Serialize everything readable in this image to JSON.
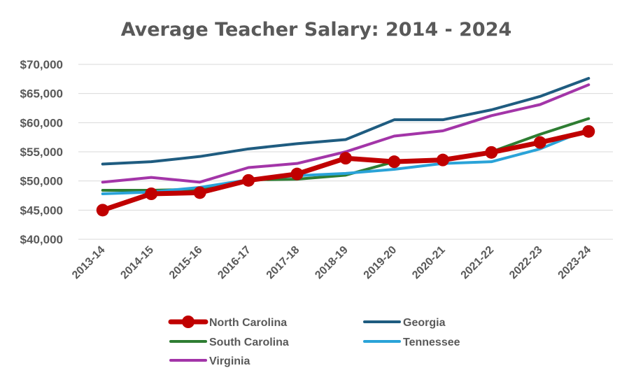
{
  "chart_data": {
    "type": "line",
    "title": "Average Teacher Salary: 2014 - 2024",
    "xlabel": "",
    "ylabel": "",
    "categories": [
      "2013-14",
      "2014-15",
      "2015-16",
      "2016-17",
      "2017-18",
      "2018-19",
      "2019-20",
      "2020-21",
      "2021-22",
      "2022-23",
      "2023-24"
    ],
    "ylim": [
      40000,
      70000
    ],
    "yticks": [
      40000,
      45000,
      50000,
      55000,
      60000,
      65000,
      70000
    ],
    "ytick_labels": [
      "$40,000",
      "$45,000",
      "$50,000",
      "$55,000",
      "$60,000",
      "$65,000",
      "$70,000"
    ],
    "grid": true,
    "legend_position": "bottom",
    "series": [
      {
        "name": "North Carolina",
        "color": "#c00000",
        "markers": true,
        "emphasis": true,
        "values": [
          45000,
          47800,
          48000,
          50100,
          51200,
          53900,
          53300,
          53600,
          54900,
          56600,
          58500
        ]
      },
      {
        "name": "Georgia",
        "color": "#1f5c80",
        "markers": false,
        "emphasis": false,
        "values": [
          52900,
          53300,
          54200,
          55500,
          56400,
          57100,
          60500,
          60500,
          62200,
          64500,
          67600
        ]
      },
      {
        "name": "South Carolina",
        "color": "#2e7d32",
        "markers": false,
        "emphasis": false,
        "values": [
          48400,
          48400,
          48600,
          50200,
          50300,
          51000,
          53300,
          53500,
          55000,
          58000,
          60700
        ]
      },
      {
        "name": "Tennessee",
        "color": "#2aa3d8",
        "markers": false,
        "emphasis": false,
        "values": [
          47800,
          48100,
          48900,
          50200,
          50900,
          51300,
          52000,
          53000,
          53300,
          55500,
          58900
        ]
      },
      {
        "name": "Virginia",
        "color": "#a335a8",
        "markers": false,
        "emphasis": false,
        "values": [
          49800,
          50600,
          49800,
          52300,
          53000,
          55000,
          57700,
          58600,
          61200,
          63100,
          66500
        ]
      }
    ]
  }
}
